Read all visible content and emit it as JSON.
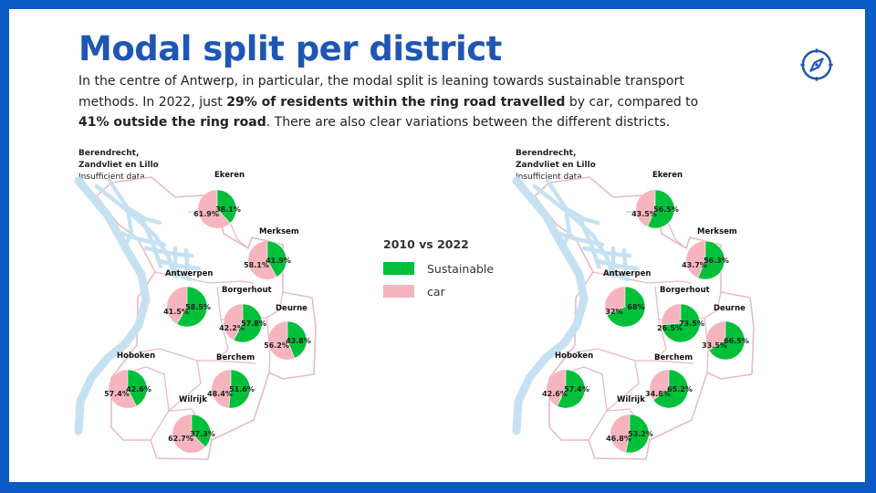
{
  "title": "Modal split per district",
  "intro": {
    "part1": "In the centre of Antwerp, in particular, the modal split is leaning towards sustainable transport methods. In 2022, just ",
    "bold1": "29% of residents within the ring road travelled",
    "part2": " by car, compared to ",
    "bold2": "41% outside the ring road",
    "part3": ". There are also clear variations between the different districts."
  },
  "icons": {
    "compass": "compass-icon"
  },
  "colors": {
    "background": "#0a5bc4",
    "title": "#1f56b4",
    "sustainable": "#00c03a",
    "car": "#f6b5be",
    "district_border": "#e6bcc2",
    "water": "#c6e2f2"
  },
  "legend": {
    "title": "2010 vs 2022",
    "items": [
      {
        "key": "sustainable",
        "label": "Sustainable"
      },
      {
        "key": "car",
        "label": "car"
      }
    ]
  },
  "maps": [
    {
      "year": "2010",
      "note": {
        "name_line1": "Berendrecht,",
        "name_line2": "Zandvliet en Lillo",
        "text": "Insufficient data"
      },
      "districts": [
        {
          "name": "Ekeren",
          "car_label": "61.9%",
          "sustainable_label": "38.1%",
          "sustainable": 38.1
        },
        {
          "name": "Merksem",
          "car_label": "58.1%",
          "sustainable_label": "41.9%",
          "sustainable": 41.9
        },
        {
          "name": "Antwerpen",
          "car_label": "41.5%",
          "sustainable_label": "58.5%",
          "sustainable": 58.5
        },
        {
          "name": "Borgerhout",
          "car_label": "42.2%",
          "sustainable_label": "57.8%",
          "sustainable": 57.8
        },
        {
          "name": "Deurne",
          "car_label": "56.2%",
          "sustainable_label": "43.8%",
          "sustainable": 43.8
        },
        {
          "name": "Hoboken",
          "car_label": "57.4%",
          "sustainable_label": "42.6%",
          "sustainable": 42.6
        },
        {
          "name": "Berchem",
          "car_label": "48.4%",
          "sustainable_label": "51.6%",
          "sustainable": 51.6
        },
        {
          "name": "Wilrijk",
          "car_label": "62.7%",
          "sustainable_label": "37.3%",
          "sustainable": 37.3
        }
      ]
    },
    {
      "year": "2022",
      "note": {
        "name_line1": "Berendrecht,",
        "name_line2": "Zandvliet en Lillo",
        "text": "Insufficient data"
      },
      "districts": [
        {
          "name": "Ekeren",
          "car_label": "43.5%",
          "sustainable_label": "56.5%",
          "sustainable": 56.5
        },
        {
          "name": "Merksem",
          "car_label": "43.7%",
          "sustainable_label": "56.3%",
          "sustainable": 56.3
        },
        {
          "name": "Antwerpen",
          "car_label": "32%",
          "sustainable_label": "68%",
          "sustainable": 68
        },
        {
          "name": "Borgerhout",
          "car_label": "26.5%",
          "sustainable_label": "73.5%",
          "sustainable": 73.5
        },
        {
          "name": "Deurne",
          "car_label": "33.5%",
          "sustainable_label": "66.5%",
          "sustainable": 66.5
        },
        {
          "name": "Hoboken",
          "car_label": "42.6%",
          "sustainable_label": "57.4%",
          "sustainable": 57.4
        },
        {
          "name": "Berchem",
          "car_label": "34.8%",
          "sustainable_label": "65.2%",
          "sustainable": 65.2
        },
        {
          "name": "Wilrijk",
          "car_label": "46.8%",
          "sustainable_label": "53.2%",
          "sustainable": 53.2
        }
      ]
    }
  ]
}
